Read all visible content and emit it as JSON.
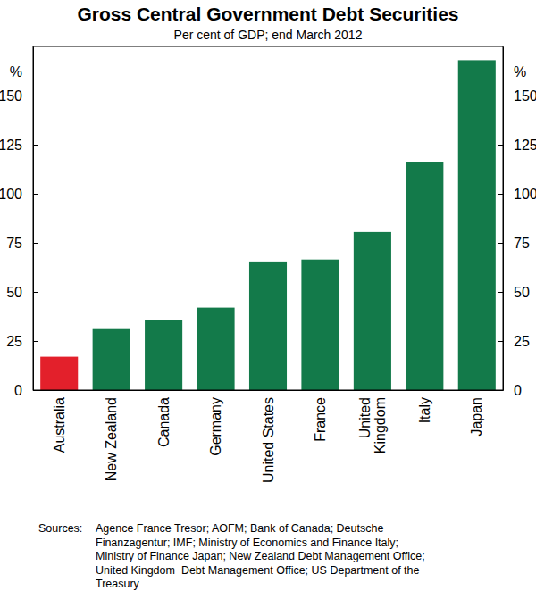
{
  "chart_data": {
    "type": "bar",
    "title": "Gross Central Government Debt Securities",
    "subtitle": "Per cent of GDP; end March 2012",
    "y_label": "%",
    "categories": [
      "Australia",
      "New Zealand",
      "Canada",
      "Germany",
      "United States",
      "France",
      "United Kingdom",
      "Italy",
      "Japan"
    ],
    "values": [
      17,
      31.5,
      35.5,
      42,
      65.5,
      66.5,
      80.5,
      116,
      168
    ],
    "colors": [
      "#e3202b",
      "#137a4a",
      "#137a4a",
      "#137a4a",
      "#137a4a",
      "#137a4a",
      "#137a4a",
      "#137a4a",
      "#137a4a"
    ],
    "ylim": [
      0,
      175
    ],
    "yticks": [
      0,
      25,
      50,
      75,
      100,
      125,
      150
    ],
    "grid": false,
    "source_label": "Sources:",
    "source_lines": [
      "Agence France Tresor; AOFM; Bank of Canada; Deutsche",
      "Finanzagentur; IMF; Ministry of Economics and Finance Italy;",
      "Ministry of Finance Japan; New Zealand Debt Management Office;",
      "United Kingdom  Debt Management Office; US Department of the",
      "Treasury"
    ]
  }
}
